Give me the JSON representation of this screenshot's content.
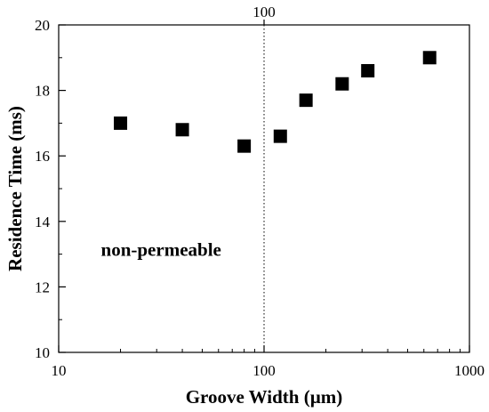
{
  "chart_data": {
    "type": "scatter",
    "xlabel": "Groove Width (µm)",
    "ylabel": "Residence Time (ms)",
    "xscale": "log",
    "xlim": [
      10,
      1000
    ],
    "ylim": [
      10,
      20
    ],
    "xticks": [
      10,
      100,
      1000
    ],
    "yticks": [
      10,
      12,
      14,
      16,
      18,
      20
    ],
    "grid": false,
    "marker": "square",
    "marker_color": "#000000",
    "series": [
      {
        "x": [
          20,
          40,
          80,
          120,
          160,
          240,
          320,
          640
        ],
        "y": [
          17.0,
          16.8,
          16.3,
          16.6,
          17.7,
          18.2,
          18.6,
          19.0
        ]
      }
    ],
    "vertical_line": {
      "x": 100,
      "style": "dotted",
      "label": "100"
    },
    "annotations": [
      {
        "text": "non-permeable",
        "x": 20,
        "y": 12.95
      }
    ]
  }
}
